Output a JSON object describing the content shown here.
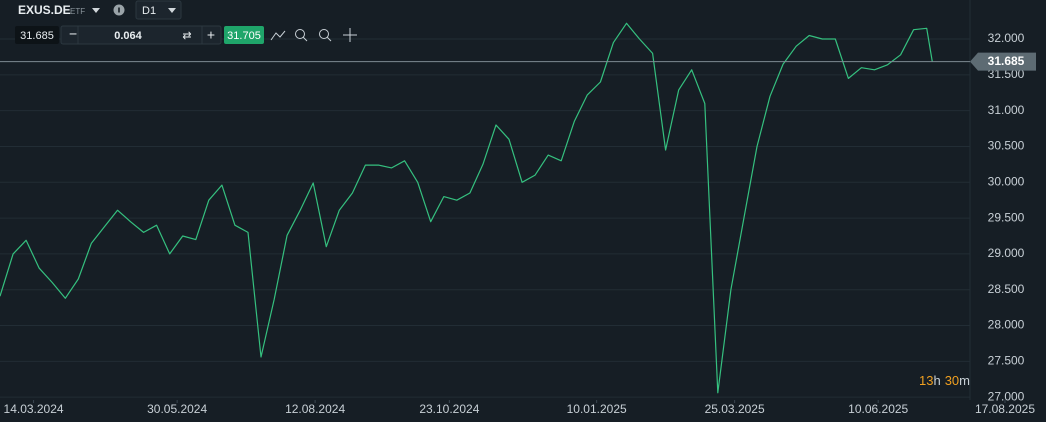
{
  "toolbar": {
    "symbol": "EXUS.DE",
    "instrument_type": "ETF",
    "timeframe": "D1",
    "sell_price": "31.685",
    "volume": "0.064",
    "buy_price": "31.705"
  },
  "countdown": {
    "hours": "13",
    "hours_unit": "h",
    "minutes": "30",
    "minutes_unit": "m"
  },
  "chart_data": {
    "type": "line",
    "color": "#35c07f",
    "grid": true,
    "x": [
      "25.02.2024",
      "03.03.2024",
      "10.03.2024",
      "17.03.2024",
      "24.03.2024",
      "31.03.2024",
      "07.04.2024",
      "14.04.2024",
      "21.04.2024",
      "28.04.2024",
      "05.05.2024",
      "12.05.2024",
      "19.05.2024",
      "26.05.2024",
      "02.06.2024",
      "09.06.2024",
      "16.06.2024",
      "23.06.2024",
      "30.06.2024",
      "07.07.2024",
      "14.07.2024",
      "21.07.2024",
      "28.07.2024",
      "04.08.2024",
      "11.08.2024",
      "18.08.2024",
      "25.08.2024",
      "01.09.2024",
      "08.09.2024",
      "15.09.2024",
      "22.09.2024",
      "29.09.2024",
      "06.10.2024",
      "13.10.2024",
      "20.10.2024",
      "27.10.2024",
      "03.11.2024",
      "10.11.2024",
      "17.11.2024",
      "24.11.2024",
      "01.12.2024",
      "08.12.2024",
      "15.12.2024",
      "22.12.2024",
      "29.12.2024",
      "05.01.2025",
      "12.01.2025",
      "19.01.2025",
      "26.01.2025",
      "02.02.2025",
      "09.02.2025",
      "16.02.2025",
      "23.02.2025",
      "02.03.2025",
      "09.03.2025",
      "16.03.2025",
      "23.03.2025",
      "30.03.2025",
      "06.04.2025",
      "13.04.2025",
      "20.04.2025",
      "27.04.2025",
      "04.05.2025",
      "11.05.2025",
      "18.05.2025",
      "25.05.2025",
      "01.06.2025",
      "08.06.2025",
      "15.06.2025",
      "22.06.2025",
      "29.06.2025",
      "06.07.2025",
      "09.07.2025"
    ],
    "values": [
      28.41,
      29.0,
      29.19,
      28.8,
      28.6,
      28.38,
      28.65,
      29.15,
      29.38,
      29.61,
      29.45,
      29.3,
      29.4,
      29.0,
      29.25,
      29.2,
      29.75,
      29.96,
      29.4,
      29.3,
      27.56,
      28.36,
      29.26,
      29.61,
      29.99,
      29.1,
      29.61,
      29.85,
      30.24,
      30.24,
      30.2,
      30.3,
      30.0,
      29.45,
      29.8,
      29.75,
      29.85,
      30.25,
      30.8,
      30.6,
      30.0,
      30.1,
      30.38,
      30.3,
      30.85,
      31.22,
      31.4,
      31.95,
      32.22,
      32.0,
      31.8,
      30.45,
      31.29,
      31.57,
      31.1,
      27.06,
      28.5,
      29.5,
      30.5,
      31.2,
      31.65,
      31.9,
      32.05,
      32.0,
      32.0,
      31.45,
      31.6,
      31.57,
      31.64,
      31.78,
      32.13,
      32.15,
      31.685
    ],
    "last_price": 31.685,
    "xlim": [
      "25.02.2024",
      "08.09.2025"
    ],
    "xticks": [
      "14.03.2024",
      "30.05.2024",
      "12.08.2024",
      "23.10.2024",
      "10.01.2025",
      "25.03.2025",
      "10.06.2025",
      "17.08.2025"
    ],
    "ylim": [
      26.96,
      32.545
    ],
    "yticks": [
      {
        "value": 27,
        "label": "27.000"
      },
      {
        "value": 27.5,
        "label": "27.500"
      },
      {
        "value": 28,
        "label": "28.000"
      },
      {
        "value": 28.5,
        "label": "28.500"
      },
      {
        "value": 29,
        "label": "29.000"
      },
      {
        "value": 29.5,
        "label": "29.500"
      },
      {
        "value": 30,
        "label": "30.000"
      },
      {
        "value": 30.5,
        "label": "30.500"
      },
      {
        "value": 31,
        "label": "31.000"
      },
      {
        "value": 31.5,
        "label": "31.500"
      },
      {
        "value": 32,
        "label": "32.000"
      }
    ]
  }
}
